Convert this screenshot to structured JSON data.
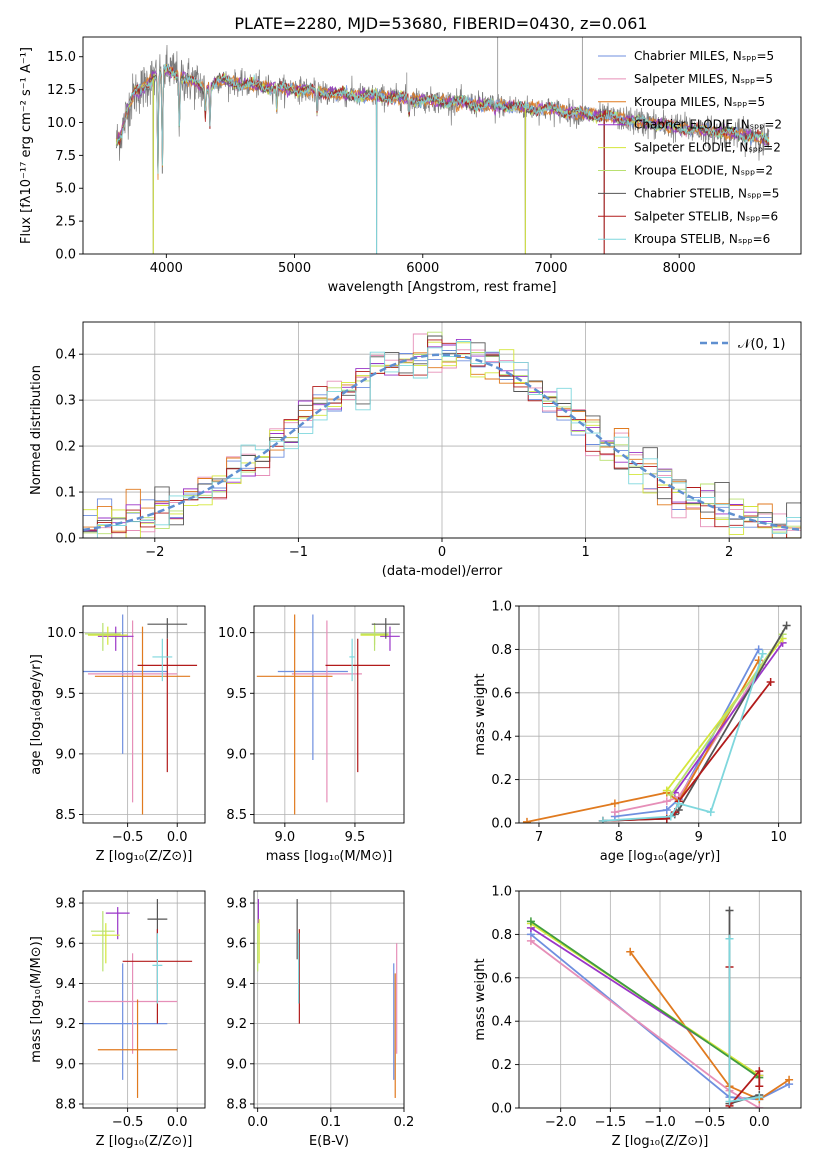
{
  "figure": {
    "title": "PLATE=2280, MJD=53680, FIBERID=0430, z=0.061"
  },
  "colors": {
    "chabrier_miles": "#6f8fdf",
    "salpeter_miles": "#e68fb8",
    "kroupa_miles": "#e07a1f",
    "chabrier_elodie": "#9a35c8",
    "salpeter_elodie": "#d4e63a",
    "kroupa_elodie": "#b9e070",
    "chabrier_stelib": "#555555",
    "salpeter_stelib": "#b21b1b",
    "kroupa_stelib": "#7fd7dd",
    "gaussian": "#5f8fd0",
    "grid": "#b0b0b0"
  },
  "chart_data": [
    {
      "id": "spectrum",
      "type": "line",
      "xlabel": "wavelength [Angstrom, rest frame]",
      "ylabel": "Flux [fλ10⁻¹⁷ erg cm⁻² s⁻¹ A⁻¹]",
      "xlim": [
        3350,
        8950
      ],
      "ylim": [
        0,
        16.5
      ],
      "xticks": [
        "4000",
        "5000",
        "6000",
        "7000",
        "8000"
      ],
      "yticks": [
        "0.0",
        "2.5",
        "5.0",
        "7.5",
        "10.0",
        "12.5",
        "15.0"
      ],
      "grid": false,
      "legend_position": "upper-right",
      "legend": [
        {
          "label": "Chabrier MILES, Nₛₚₚ=5",
          "color": "#6f8fdf"
        },
        {
          "label": "Salpeter MILES, Nₛₚₚ=5",
          "color": "#e68fb8"
        },
        {
          "label": "Kroupa MILES, Nₛₚₚ=5",
          "color": "#e07a1f"
        },
        {
          "label": "Chabrier ELODIE, Nₛₚₚ=2",
          "color": "#9a35c8"
        },
        {
          "label": "Salpeter ELODIE, Nₛₚₚ=2",
          "color": "#d4e63a"
        },
        {
          "label": "Kroupa ELODIE, Nₛₚₚ=2",
          "color": "#b9e070"
        },
        {
          "label": "Chabrier STELIB, Nₛₚₚ=5",
          "color": "#555555"
        },
        {
          "label": "Salpeter STELIB, Nₛₚₚ=6",
          "color": "#b21b1b"
        },
        {
          "label": "Kroupa STELIB, Nₛₚₚ=6",
          "color": "#7fd7dd"
        }
      ],
      "continuum": {
        "x": [
          3610,
          3650,
          3700,
          3750,
          3800,
          3850,
          3900,
          3950,
          4000,
          4050,
          4100,
          4150,
          4200,
          4250,
          4300,
          4400,
          4500,
          4600,
          4700,
          4800,
          4900,
          5000,
          5200,
          5400,
          5600,
          5800,
          6000,
          6200,
          6400,
          6600,
          6800,
          7000,
          7200,
          7400,
          7600,
          7800,
          8000,
          8200,
          8400,
          8600,
          8700
        ],
        "y": [
          8.5,
          9.2,
          11.0,
          12.2,
          12.5,
          13.0,
          13.4,
          13.6,
          14.0,
          13.8,
          13.6,
          13.3,
          13.1,
          12.9,
          12.5,
          13.2,
          13.1,
          12.9,
          12.8,
          12.7,
          12.6,
          12.6,
          12.3,
          12.1,
          12.0,
          11.9,
          11.7,
          11.6,
          11.4,
          11.3,
          11.1,
          11.0,
          10.7,
          10.5,
          10.2,
          9.9,
          9.6,
          9.4,
          9.2,
          8.9,
          8.6
        ]
      },
      "absorption_features": [
        {
          "x": 3934,
          "y": 6.0
        },
        {
          "x": 3969,
          "y": 6.5
        },
        {
          "x": 4102,
          "y": 9.5
        },
        {
          "x": 4304,
          "y": 10.5
        },
        {
          "x": 4340,
          "y": 10.0
        },
        {
          "x": 4861,
          "y": 11.0
        },
        {
          "x": 5175,
          "y": 10.7
        },
        {
          "x": 5893,
          "y": 10.5
        },
        {
          "x": 6563,
          "y": 10.8
        }
      ],
      "artifacts": [
        {
          "x": 3898,
          "y": 0.0
        },
        {
          "x": 5640,
          "y": 0.0
        },
        {
          "x": 6800,
          "y": 0.0
        },
        {
          "x": 7415,
          "y": 0.0
        },
        {
          "x": 8655,
          "y": 7.5
        }
      ],
      "emission_spikes": [
        {
          "x": 6584,
          "y": 16.5
        },
        {
          "x": 5875,
          "y": 13.8
        },
        {
          "x": 7245,
          "y": 16.5
        }
      ]
    },
    {
      "id": "residuals",
      "type": "line",
      "xlabel": "(data-model)/error",
      "ylabel": "Normed distribution",
      "xlim": [
        -2.5,
        2.5
      ],
      "ylim": [
        0,
        0.47
      ],
      "xticks": [
        "−2",
        "−1",
        "0",
        "1",
        "2"
      ],
      "yticks": [
        "0.0",
        "0.1",
        "0.2",
        "0.3",
        "0.4"
      ],
      "grid": true,
      "legend_position": "upper-right",
      "legend": [
        {
          "label": "𝒩(0, 1)",
          "color": "#5f8fd0"
        }
      ],
      "hist_bin_width": 0.1,
      "hist_range": [
        -2.5,
        2.5
      ]
    },
    {
      "id": "age_vs_Z",
      "type": "scatter",
      "xlabel": "Z [log₁₀(Z/Z⊙)]",
      "ylabel": "age  [log₁₀(age/yr)]",
      "xlim": [
        -0.95,
        0.28
      ],
      "ylim": [
        8.43,
        10.22
      ],
      "xticks": [
        "−0.5",
        "0.0"
      ],
      "yticks": [
        "8.5",
        "9.0",
        "9.5",
        "10.0"
      ],
      "grid": true,
      "series": [
        {
          "x": -0.55,
          "y": 9.68,
          "xerr": 0.45,
          "yerr": [
            9.0,
            10.15
          ],
          "color": "#6f8fdf"
        },
        {
          "x": -0.45,
          "y": 9.66,
          "xerr": 0.45,
          "yerr": [
            8.6,
            10.1
          ],
          "color": "#e68fb8"
        },
        {
          "x": -0.35,
          "y": 9.64,
          "xerr": 0.48,
          "yerr": [
            8.5,
            10.05
          ],
          "color": "#e07a1f"
        },
        {
          "x": -0.62,
          "y": 9.97,
          "xerr": 0.18,
          "yerr": [
            9.85,
            10.05
          ],
          "color": "#9a35c8"
        },
        {
          "x": -0.7,
          "y": 9.98,
          "xerr": 0.2,
          "yerr": [
            9.9,
            10.05
          ],
          "color": "#d4e63a"
        },
        {
          "x": -0.75,
          "y": 9.99,
          "xerr": 0.18,
          "yerr": [
            9.85,
            10.08
          ],
          "color": "#b9e070"
        },
        {
          "x": -0.1,
          "y": 10.07,
          "xerr": 0.2,
          "yerr": [
            9.95,
            10.12
          ],
          "color": "#555555"
        },
        {
          "x": -0.1,
          "y": 9.73,
          "xerr": 0.3,
          "yerr": [
            8.85,
            9.95
          ],
          "color": "#b21b1b"
        },
        {
          "x": -0.15,
          "y": 9.8,
          "xerr": 0.1,
          "yerr": [
            9.6,
            9.95
          ],
          "color": "#7fd7dd"
        }
      ]
    },
    {
      "id": "age_vs_mass",
      "type": "scatter",
      "xlabel": "mass [log₁₀(M/M⊙)]",
      "ylabel": "",
      "xlim": [
        8.78,
        9.85
      ],
      "ylim": [
        8.43,
        10.22
      ],
      "xticks": [
        "9.0",
        "9.5"
      ],
      "yticks": [
        "8.5",
        "9.0",
        "9.5",
        "10.0"
      ],
      "grid": true,
      "series": [
        {
          "x": 9.2,
          "y": 9.68,
          "xerr": 0.25,
          "yerr": [
            8.95,
            10.15
          ],
          "color": "#6f8fdf"
        },
        {
          "x": 9.3,
          "y": 9.66,
          "xerr": 0.25,
          "yerr": [
            8.6,
            10.1
          ],
          "color": "#e68fb8"
        },
        {
          "x": 9.07,
          "y": 9.64,
          "xerr": 0.27,
          "yerr": [
            8.5,
            10.15
          ],
          "color": "#e07a1f"
        },
        {
          "x": 9.75,
          "y": 9.97,
          "xerr": 0.07,
          "yerr": [
            9.85,
            10.05
          ],
          "color": "#9a35c8"
        },
        {
          "x": 9.64,
          "y": 9.98,
          "xerr": 0.1,
          "yerr": [
            9.9,
            10.05
          ],
          "color": "#d4e63a"
        },
        {
          "x": 9.64,
          "y": 9.99,
          "xerr": 0.1,
          "yerr": [
            9.85,
            10.08
          ],
          "color": "#b9e070"
        },
        {
          "x": 9.72,
          "y": 10.07,
          "xerr": 0.1,
          "yerr": [
            9.95,
            10.12
          ],
          "color": "#555555"
        },
        {
          "x": 9.52,
          "y": 9.73,
          "xerr": 0.23,
          "yerr": [
            8.85,
            9.95
          ],
          "color": "#b21b1b"
        },
        {
          "x": 9.48,
          "y": 9.8,
          "xerr": 0.02,
          "yerr": [
            9.6,
            9.95
          ],
          "color": "#7fd7dd"
        }
      ]
    },
    {
      "id": "massweight_vs_age",
      "type": "line",
      "xlabel": "age  [log₁₀(age/yr)]",
      "ylabel": "mass weight",
      "xlim": [
        6.75,
        10.28
      ],
      "ylim": [
        0,
        1.0
      ],
      "xticks": [
        "7",
        "8",
        "9",
        "10"
      ],
      "yticks": [
        "0.0",
        "0.2",
        "0.4",
        "0.6",
        "0.8",
        "1.0"
      ],
      "grid": true,
      "series": [
        {
          "color": "#6f8fdf",
          "x": [
            7.95,
            8.6,
            8.75,
            9.75
          ],
          "y": [
            0.03,
            0.06,
            0.11,
            0.8
          ]
        },
        {
          "color": "#e68fb8",
          "x": [
            7.95,
            8.6,
            8.75,
            9.8
          ],
          "y": [
            0.05,
            0.1,
            0.12,
            0.73
          ]
        },
        {
          "color": "#e07a1f",
          "x": [
            6.85,
            7.95,
            8.6,
            8.75,
            9.75
          ],
          "y": [
            0.005,
            0.09,
            0.14,
            0.1,
            0.75
          ]
        },
        {
          "color": "#9a35c8",
          "x": [
            8.7,
            10.05
          ],
          "y": [
            0.14,
            0.83
          ]
        },
        {
          "color": "#d4e63a",
          "x": [
            8.6,
            10.05
          ],
          "y": [
            0.15,
            0.85
          ]
        },
        {
          "color": "#b9e070",
          "x": [
            8.65,
            10.05
          ],
          "y": [
            0.13,
            0.87
          ]
        },
        {
          "color": "#555555",
          "x": [
            7.8,
            8.6,
            8.7,
            8.75,
            10.1
          ],
          "y": [
            0.01,
            0.02,
            0.04,
            0.06,
            0.91
          ]
        },
        {
          "color": "#b21b1b",
          "x": [
            7.8,
            8.6,
            8.7,
            8.75,
            9.9
          ],
          "y": [
            0.01,
            0.02,
            0.05,
            0.1,
            0.65
          ]
        },
        {
          "color": "#7fd7dd",
          "x": [
            7.8,
            8.65,
            8.75,
            9.15,
            9.8
          ],
          "y": [
            0.01,
            0.03,
            0.09,
            0.05,
            0.78
          ]
        }
      ]
    },
    {
      "id": "mass_vs_Z",
      "type": "scatter",
      "xlabel": "Z [log₁₀(Z/Z⊙)]",
      "ylabel": "mass [log₁₀(M/M⊙)]",
      "xlim": [
        -0.95,
        0.28
      ],
      "ylim": [
        8.78,
        9.86
      ],
      "xticks": [
        "−0.5",
        "0.0"
      ],
      "yticks": [
        "8.8",
        "9.0",
        "9.2",
        "9.4",
        "9.6",
        "9.8"
      ],
      "grid": true,
      "series": [
        {
          "x": -0.55,
          "y": 9.2,
          "xerr": 0.45,
          "yerr": [
            8.92,
            9.5
          ],
          "color": "#6f8fdf"
        },
        {
          "x": -0.45,
          "y": 9.31,
          "xerr": 0.45,
          "yerr": [
            9.05,
            9.55
          ],
          "color": "#e68fb8"
        },
        {
          "x": -0.4,
          "y": 9.07,
          "xerr": 0.4,
          "yerr": [
            8.83,
            9.32
          ],
          "color": "#e07a1f"
        },
        {
          "x": -0.6,
          "y": 9.75,
          "xerr": 0.12,
          "yerr": [
            9.62,
            9.78
          ],
          "color": "#9a35c8"
        },
        {
          "x": -0.72,
          "y": 9.64,
          "xerr": 0.14,
          "yerr": [
            9.5,
            9.7
          ],
          "color": "#d4e63a"
        },
        {
          "x": -0.75,
          "y": 9.66,
          "xerr": 0.12,
          "yerr": [
            9.46,
            9.76
          ],
          "color": "#b9e070"
        },
        {
          "x": -0.2,
          "y": 9.72,
          "xerr": 0.1,
          "yerr": [
            9.52,
            9.82
          ],
          "color": "#555555"
        },
        {
          "x": -0.2,
          "y": 9.51,
          "xerr": 0.35,
          "yerr": [
            9.2,
            9.67
          ],
          "color": "#b21b1b"
        },
        {
          "x": -0.2,
          "y": 9.49,
          "xerr": 0.05,
          "yerr": [
            9.3,
            9.65
          ],
          "color": "#7fd7dd"
        }
      ]
    },
    {
      "id": "mass_vs_ebv",
      "type": "scatter",
      "xlabel": "E(B-V)",
      "ylabel": "",
      "xlim": [
        -0.005,
        0.2
      ],
      "ylim": [
        8.78,
        9.86
      ],
      "xticks": [
        "0.0",
        "0.1",
        "0.2"
      ],
      "yticks": [
        "8.8",
        "9.0",
        "9.2",
        "9.4",
        "9.6",
        "9.8"
      ],
      "grid": true,
      "series": [
        {
          "x": 0.186,
          "yerr": [
            8.92,
            9.5
          ],
          "color": "#6f8fdf"
        },
        {
          "x": 0.19,
          "yerr": [
            9.05,
            9.6
          ],
          "color": "#e68fb8"
        },
        {
          "x": 0.188,
          "yerr": [
            8.83,
            9.45
          ],
          "color": "#e07a1f"
        },
        {
          "x": 0.001,
          "yerr": [
            9.7,
            9.82
          ],
          "color": "#9a35c8"
        },
        {
          "x": 0.002,
          "yerr": [
            9.5,
            9.72
          ],
          "color": "#d4e63a"
        },
        {
          "x": 0.0,
          "yerr": [
            9.46,
            9.7
          ],
          "color": "#b9e070"
        },
        {
          "x": 0.054,
          "yerr": [
            9.52,
            9.82
          ],
          "color": "#555555"
        },
        {
          "x": 0.057,
          "yerr": [
            9.2,
            9.67
          ],
          "color": "#b21b1b"
        },
        {
          "x": 0.056,
          "yerr": [
            9.3,
            9.65
          ],
          "color": "#7fd7dd"
        }
      ]
    },
    {
      "id": "massweight_vs_Z",
      "type": "line",
      "xlabel": "Z [log₁₀(Z/Z⊙)]",
      "ylabel": "mass weight",
      "xlim": [
        -2.42,
        0.42
      ],
      "ylim": [
        0,
        1.0
      ],
      "xticks": [
        "−2.0",
        "−1.5",
        "−1.0",
        "−0.5",
        "0.0"
      ],
      "yticks": [
        "0.0",
        "0.2",
        "0.4",
        "0.6",
        "0.8",
        "1.0"
      ],
      "grid": true,
      "series": [
        {
          "color": "#6f8fdf",
          "x": [
            -2.3,
            -0.3,
            0.0,
            0.3
          ],
          "y": [
            0.8,
            0.05,
            0.04,
            0.11
          ]
        },
        {
          "color": "#e68fb8",
          "x": [
            -2.3,
            -0.3,
            0.0
          ],
          "y": [
            0.77,
            0.08,
            0.0
          ]
        },
        {
          "color": "#e07a1f",
          "x": [
            -1.3,
            -0.3,
            0.0,
            0.3
          ],
          "y": [
            0.72,
            0.1,
            0.04,
            0.13
          ]
        },
        {
          "color": "#9a35c8",
          "x": [
            -2.3,
            0.0
          ],
          "y": [
            0.83,
            0.15
          ]
        },
        {
          "color": "#d4e63a",
          "x": [
            -2.3,
            0.0
          ],
          "y": [
            0.85,
            0.15
          ]
        },
        {
          "color": "#3f9c3f",
          "x": [
            -2.3,
            0.0
          ],
          "y": [
            0.86,
            0.14
          ]
        },
        {
          "color": "#555555",
          "x": [
            -0.3,
            -0.3,
            0.0
          ],
          "y": [
            0.91,
            0.02,
            0.06
          ]
        },
        {
          "color": "#b21b1b",
          "x": [
            -0.3,
            -0.3,
            0.0,
            0.0
          ],
          "y": [
            0.65,
            0.01,
            0.17,
            0.1
          ]
        },
        {
          "color": "#7fd7dd",
          "x": [
            -0.3,
            -0.3,
            0.0
          ],
          "y": [
            0.78,
            0.03,
            0.05
          ]
        }
      ]
    }
  ]
}
